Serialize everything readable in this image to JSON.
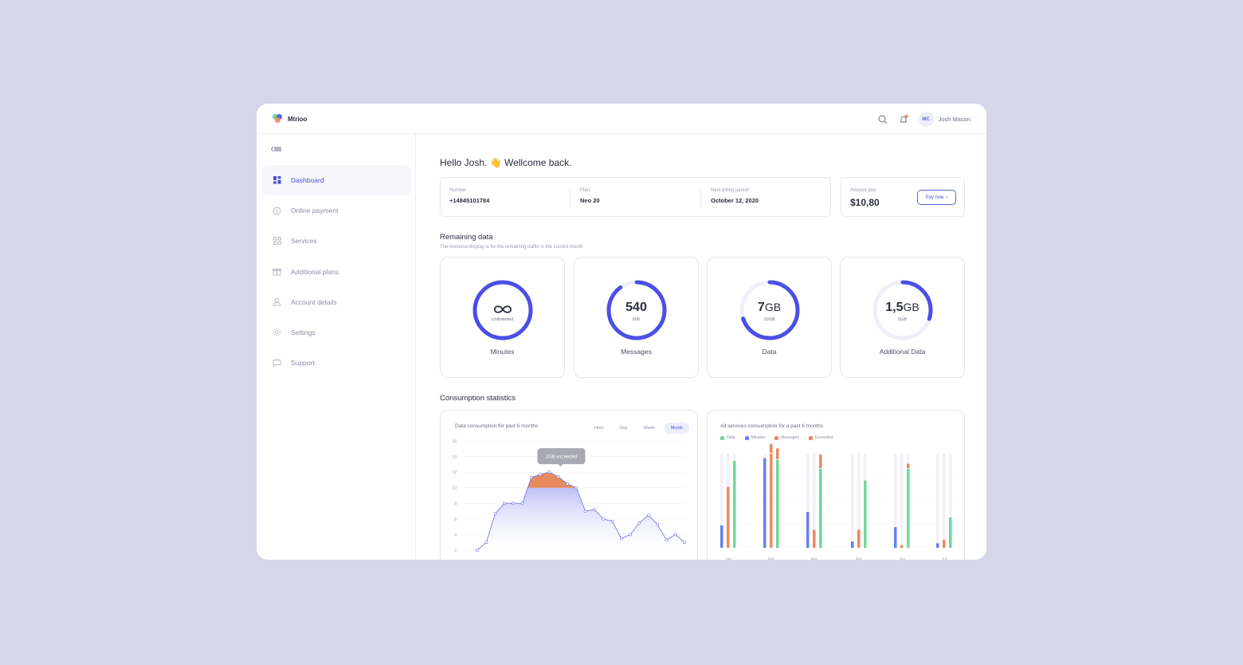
{
  "app": {
    "name": "Mtrioo"
  },
  "user": {
    "initials": "MC",
    "name": "Josh Mason"
  },
  "sidebar": {
    "items": [
      {
        "label": "Dashboard",
        "icon": "dashboard-icon",
        "active": true
      },
      {
        "label": "Online payment",
        "icon": "dollar-icon"
      },
      {
        "label": "Services",
        "icon": "grid-icon"
      },
      {
        "label": "Additional plans",
        "icon": "gift-icon"
      },
      {
        "label": "Account details",
        "icon": "user-icon"
      },
      {
        "label": "Settings",
        "icon": "gear-icon"
      },
      {
        "label": "Support",
        "icon": "chat-icon"
      }
    ]
  },
  "greeting": "Hello Josh. 👋 Wellcome back.",
  "account": {
    "number_label": "Number",
    "number": "+14845101784",
    "plan_label": "Plan",
    "plan": "Neo 20",
    "billing_label": "Next billing period",
    "billing": "October 12, 2020"
  },
  "due": {
    "label": "Amount due",
    "value": "$10,80",
    "pay_label": "Pay now"
  },
  "remaining": {
    "title": "Remaining data",
    "subtitle": "The resource display is for the remaining traffic in the current month",
    "gauges": [
      {
        "main": "",
        "unit": "",
        "sub": "Unlimmited",
        "name": "Minutes",
        "fraction": 1.0,
        "infinite": true
      },
      {
        "main": "540",
        "unit": "",
        "sub": "600",
        "name": "Messages",
        "fraction": 0.9
      },
      {
        "main": "7",
        "unit": "GB",
        "sub": "10GB",
        "name": "Data",
        "fraction": 0.7
      },
      {
        "main": "1,5",
        "unit": "GB",
        "sub": "5GB",
        "name": "Additional Data",
        "fraction": 0.3
      }
    ]
  },
  "consumption": {
    "title": "Consumption statistics",
    "area_chart": {
      "title": "Data consumption for past 6 months",
      "tabs": [
        "Hour",
        "Day",
        "Week",
        "Month"
      ],
      "active_tab": "Month",
      "tooltip": "2GB exceeded"
    },
    "bar_chart": {
      "title": "All services consumption for a past 6 months",
      "legend": [
        {
          "label": "Data",
          "color": "#6fd89a"
        },
        {
          "label": "Minutes",
          "color": "#6b7ff0"
        },
        {
          "label": "Messages",
          "color": "#e98a5e"
        },
        {
          "label": "Exceeded",
          "color": "#e98a5e"
        }
      ]
    }
  },
  "chart_data": [
    {
      "type": "area",
      "title": "Data consumption for past 6 months",
      "y_ticks": [
        "16",
        "14",
        "12",
        "10",
        "8",
        "6",
        "4",
        "2"
      ],
      "ylim": [
        2,
        16
      ],
      "threshold": 10,
      "values": [
        2,
        3,
        6.7,
        8,
        8,
        8,
        11.3,
        11.7,
        12,
        11.4,
        10.5,
        10,
        7,
        7.2,
        6,
        5.7,
        3.5,
        4,
        5.5,
        6.5,
        5.3,
        3.3,
        4,
        3
      ]
    },
    {
      "type": "bar",
      "title": "All services consumption for a past 6 months",
      "categories": [
        "Jan",
        "Feb",
        "Mar",
        "Apr",
        "Jun",
        "Jul"
      ],
      "series": [
        {
          "name": "Minutes",
          "color": "#6b7ff0",
          "values": [
            25,
            100,
            40,
            7,
            23,
            5
          ]
        },
        {
          "name": "Messages",
          "color": "#e98a5e",
          "values": [
            68,
            105,
            20,
            20,
            3,
            9
          ]
        },
        {
          "name": "Exceeded",
          "color": "#e98a5e",
          "values": [
            0,
            10,
            0,
            0,
            0,
            0
          ]
        },
        {
          "name": "Data",
          "color": "#6fd89a",
          "values": [
            97,
            98,
            88,
            75,
            88,
            34
          ]
        },
        {
          "name": "Exceeded",
          "color": "#e98a5e",
          "values": [
            0,
            12,
            15,
            0,
            5,
            0
          ]
        }
      ]
    }
  ]
}
